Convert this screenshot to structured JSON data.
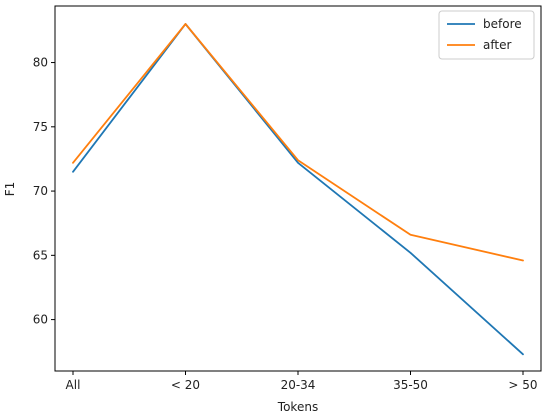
{
  "chart_data": {
    "type": "line",
    "xlabel": "Tokens",
    "ylabel": "F1",
    "categories": [
      "All",
      "< 20",
      "20-34",
      "35-50",
      "> 50"
    ],
    "series": [
      {
        "name": "before",
        "color": "#1f77b4",
        "values": [
          71.5,
          83.0,
          72.2,
          65.2,
          57.3
        ]
      },
      {
        "name": "after",
        "color": "#ff7f0e",
        "values": [
          72.2,
          83.0,
          72.4,
          66.6,
          64.6
        ]
      }
    ],
    "yticks": [
      60,
      65,
      70,
      75,
      80
    ],
    "ylim": [
      56.0,
      84.4
    ],
    "grid": false,
    "legend_position": "top-right"
  }
}
